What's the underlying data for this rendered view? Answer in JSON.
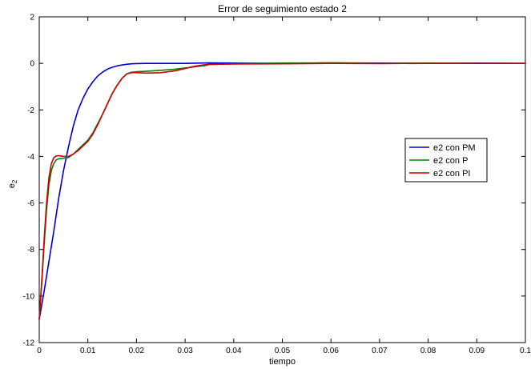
{
  "chart_data": {
    "type": "line",
    "title": "Error de seguimiento estado 2",
    "xlabel": "tiempo",
    "ylabel_main": "e",
    "ylabel_sub": "2",
    "xlim": [
      0,
      0.1
    ],
    "ylim": [
      -12,
      2
    ],
    "xticks": [
      0,
      0.01,
      0.02,
      0.03,
      0.04,
      0.05,
      0.06,
      0.07,
      0.08,
      0.09,
      0.1
    ],
    "xtick_labels": [
      "0",
      "0.01",
      "0.02",
      "0.03",
      "0.04",
      "0.05",
      "0.06",
      "0.07",
      "0.08",
      "0.09",
      "0.1"
    ],
    "yticks": [
      -12,
      -10,
      -8,
      -6,
      -4,
      -2,
      0,
      2
    ],
    "ytick_labels": [
      "-12",
      "-10",
      "-8",
      "-6",
      "-4",
      "-2",
      "0",
      "2"
    ],
    "grid": false,
    "legend_position": "right",
    "series": [
      {
        "name": "e2 con PM",
        "color": "#0000cc",
        "x": [
          0,
          0.001,
          0.002,
          0.003,
          0.004,
          0.005,
          0.006,
          0.007,
          0.008,
          0.009,
          0.01,
          0.011,
          0.012,
          0.013,
          0.014,
          0.015,
          0.016,
          0.017,
          0.018,
          0.019,
          0.02,
          0.022,
          0.025,
          0.03,
          0.035,
          0.04,
          0.05,
          0.06,
          0.07,
          0.08,
          0.09,
          0.1
        ],
        "y": [
          -11,
          -9.8,
          -8.5,
          -7.2,
          -5.8,
          -4.6,
          -3.6,
          -2.7,
          -2.0,
          -1.5,
          -1.1,
          -0.8,
          -0.55,
          -0.38,
          -0.25,
          -0.17,
          -0.11,
          -0.07,
          -0.04,
          -0.02,
          -0.01,
          0,
          0,
          0,
          0.02,
          0.01,
          0,
          0.02,
          0.01,
          0,
          0.01,
          0
        ]
      },
      {
        "name": "e2 con P",
        "color": "#008000",
        "x": [
          0,
          0.0005,
          0.001,
          0.0015,
          0.002,
          0.0025,
          0.003,
          0.0035,
          0.004,
          0.005,
          0.006,
          0.007,
          0.008,
          0.009,
          0.01,
          0.011,
          0.012,
          0.013,
          0.014,
          0.015,
          0.016,
          0.017,
          0.018,
          0.019,
          0.02,
          0.022,
          0.025,
          0.028,
          0.03,
          0.032,
          0.034,
          0.035,
          0.04,
          0.05,
          0.06,
          0.07,
          0.08,
          0.09,
          0.1
        ],
        "y": [
          -11,
          -9.5,
          -7.8,
          -6.3,
          -5.2,
          -4.6,
          -4.3,
          -4.15,
          -4.1,
          -4.08,
          -4.05,
          -3.9,
          -3.7,
          -3.5,
          -3.3,
          -3.0,
          -2.6,
          -2.2,
          -1.75,
          -1.3,
          -0.95,
          -0.65,
          -0.45,
          -0.38,
          -0.36,
          -0.34,
          -0.3,
          -0.25,
          -0.2,
          -0.15,
          -0.1,
          -0.05,
          -0.02,
          0.01,
          0.02,
          0,
          0.01,
          0,
          0
        ]
      },
      {
        "name": "e2 con PI",
        "color": "#cc0000",
        "x": [
          0,
          0.0005,
          0.001,
          0.0015,
          0.002,
          0.0025,
          0.003,
          0.0035,
          0.004,
          0.005,
          0.006,
          0.007,
          0.008,
          0.009,
          0.01,
          0.011,
          0.012,
          0.013,
          0.014,
          0.015,
          0.016,
          0.017,
          0.018,
          0.019,
          0.02,
          0.022,
          0.025,
          0.028,
          0.03,
          0.032,
          0.034,
          0.035,
          0.04,
          0.05,
          0.06,
          0.07,
          0.08,
          0.09,
          0.1
        ],
        "y": [
          -11,
          -9.4,
          -7.6,
          -6.0,
          -4.9,
          -4.3,
          -4.05,
          -3.98,
          -3.97,
          -4.0,
          -4.0,
          -3.9,
          -3.75,
          -3.55,
          -3.35,
          -3.05,
          -2.65,
          -2.2,
          -1.75,
          -1.3,
          -0.95,
          -0.65,
          -0.45,
          -0.4,
          -0.4,
          -0.42,
          -0.4,
          -0.32,
          -0.22,
          -0.12,
          -0.06,
          -0.04,
          -0.03,
          -0.02,
          0,
          -0.01,
          0,
          0,
          0
        ]
      }
    ]
  }
}
